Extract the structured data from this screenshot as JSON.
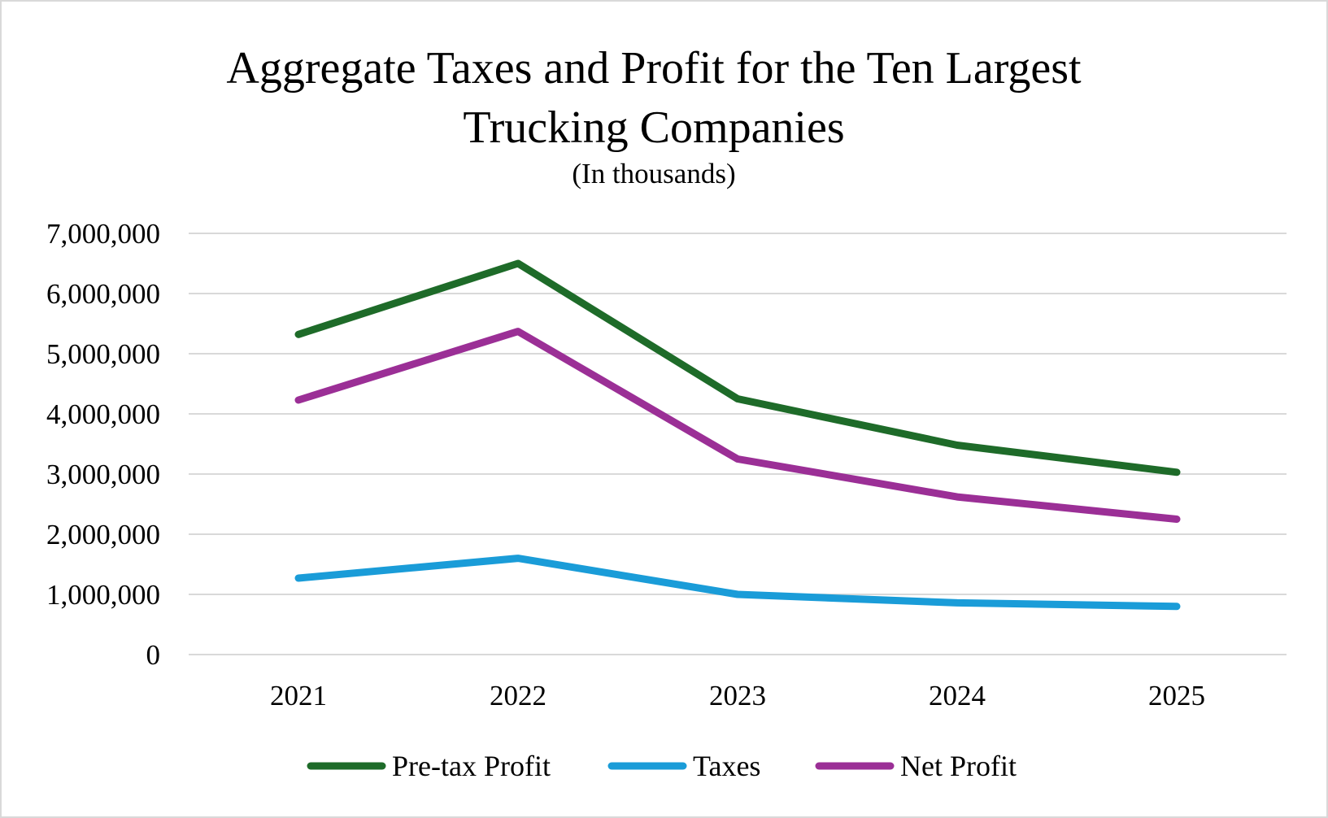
{
  "chart_data": {
    "type": "line",
    "title_lines": [
      "Aggregate Taxes and Profit for the Ten Largest",
      "Trucking Companies"
    ],
    "subtitle": "(In thousands)",
    "categories": [
      "2021",
      "2022",
      "2023",
      "2024",
      "2025"
    ],
    "ylim": [
      0,
      7000000
    ],
    "y_ticks": [
      0,
      1000000,
      2000000,
      3000000,
      4000000,
      5000000,
      6000000,
      7000000
    ],
    "y_tick_labels": [
      "0",
      "1,000,000",
      "2,000,000",
      "3,000,000",
      "4,000,000",
      "5,000,000",
      "6,000,000",
      "7,000,000"
    ],
    "grid": true,
    "legend_position": "bottom",
    "series": [
      {
        "name": "Pre-tax Profit",
        "color": "#1e6b29",
        "values": [
          5320000,
          6500000,
          4250000,
          3480000,
          3030000
        ]
      },
      {
        "name": "Taxes",
        "color": "#1a9cd8",
        "values": [
          1270000,
          1600000,
          1000000,
          860000,
          800000
        ]
      },
      {
        "name": "Net Profit",
        "color": "#9b2f96",
        "values": [
          4230000,
          5370000,
          3250000,
          2620000,
          2250000
        ]
      }
    ]
  }
}
